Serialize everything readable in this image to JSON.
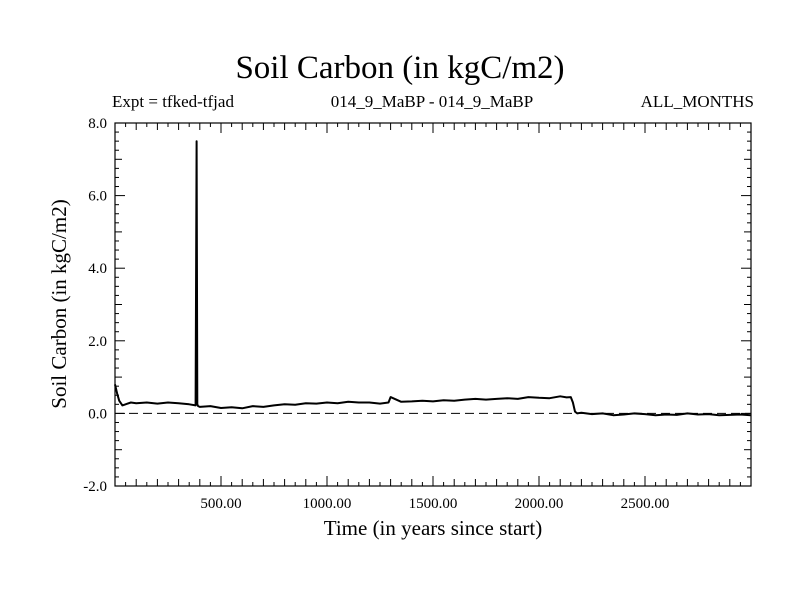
{
  "header": {
    "title": "Soil Carbon (in kgC/m2)",
    "experiment": "Expt = tfked-tfjad",
    "subtitle": "014_9_MaBP - 014_9_MaBP",
    "period": "ALL_MONTHS"
  },
  "chart_data": {
    "type": "line",
    "title": "Soil Carbon (in kgC/m2)",
    "xlabel": "Time (in years since start)",
    "ylabel": "Soil Carbon (in kgC/m2)",
    "xlim": [
      0,
      3000
    ],
    "ylim": [
      -2.0,
      8.0
    ],
    "x_ticks": [
      500,
      1000,
      1500,
      2000,
      2500
    ],
    "x_tick_labels": [
      "500.00",
      "1000.00",
      "1500.00",
      "2000.00",
      "2500.00"
    ],
    "y_ticks": [
      -2.0,
      0.0,
      2.0,
      4.0,
      6.0,
      8.0
    ],
    "y_tick_labels": [
      "-2.0",
      "0.0",
      "2.0",
      "4.0",
      "6.0",
      "8.0"
    ],
    "zero_line": "dashed",
    "grid": false,
    "series": [
      {
        "color": "#000000",
        "x": [
          0,
          10,
          20,
          35,
          50,
          75,
          100,
          150,
          200,
          250,
          300,
          350,
          380,
          385,
          388,
          392,
          400,
          450,
          500,
          550,
          600,
          650,
          700,
          750,
          800,
          850,
          900,
          950,
          1000,
          1050,
          1100,
          1150,
          1200,
          1250,
          1290,
          1300,
          1350,
          1400,
          1450,
          1500,
          1550,
          1600,
          1650,
          1700,
          1750,
          1800,
          1850,
          1900,
          1950,
          2000,
          2050,
          2100,
          2130,
          2150,
          2160,
          2170,
          2180,
          2200,
          2250,
          2300,
          2350,
          2400,
          2450,
          2500,
          2550,
          2600,
          2650,
          2700,
          2750,
          2800,
          2850,
          2900,
          2950,
          3000
        ],
        "values": [
          0.8,
          0.55,
          0.35,
          0.22,
          0.25,
          0.3,
          0.28,
          0.3,
          0.27,
          0.3,
          0.28,
          0.25,
          0.22,
          7.5,
          0.25,
          0.2,
          0.18,
          0.2,
          0.15,
          0.17,
          0.14,
          0.2,
          0.18,
          0.22,
          0.25,
          0.24,
          0.28,
          0.27,
          0.3,
          0.28,
          0.32,
          0.3,
          0.3,
          0.27,
          0.3,
          0.45,
          0.32,
          0.33,
          0.35,
          0.33,
          0.36,
          0.35,
          0.38,
          0.4,
          0.38,
          0.4,
          0.42,
          0.4,
          0.45,
          0.43,
          0.42,
          0.47,
          0.44,
          0.45,
          0.3,
          0.05,
          0.0,
          0.02,
          -0.02,
          0.0,
          -0.05,
          -0.03,
          0.0,
          -0.02,
          -0.05,
          -0.03,
          -0.04,
          0.0,
          -0.03,
          -0.02,
          -0.05,
          -0.04,
          -0.03,
          -0.05
        ]
      }
    ]
  }
}
